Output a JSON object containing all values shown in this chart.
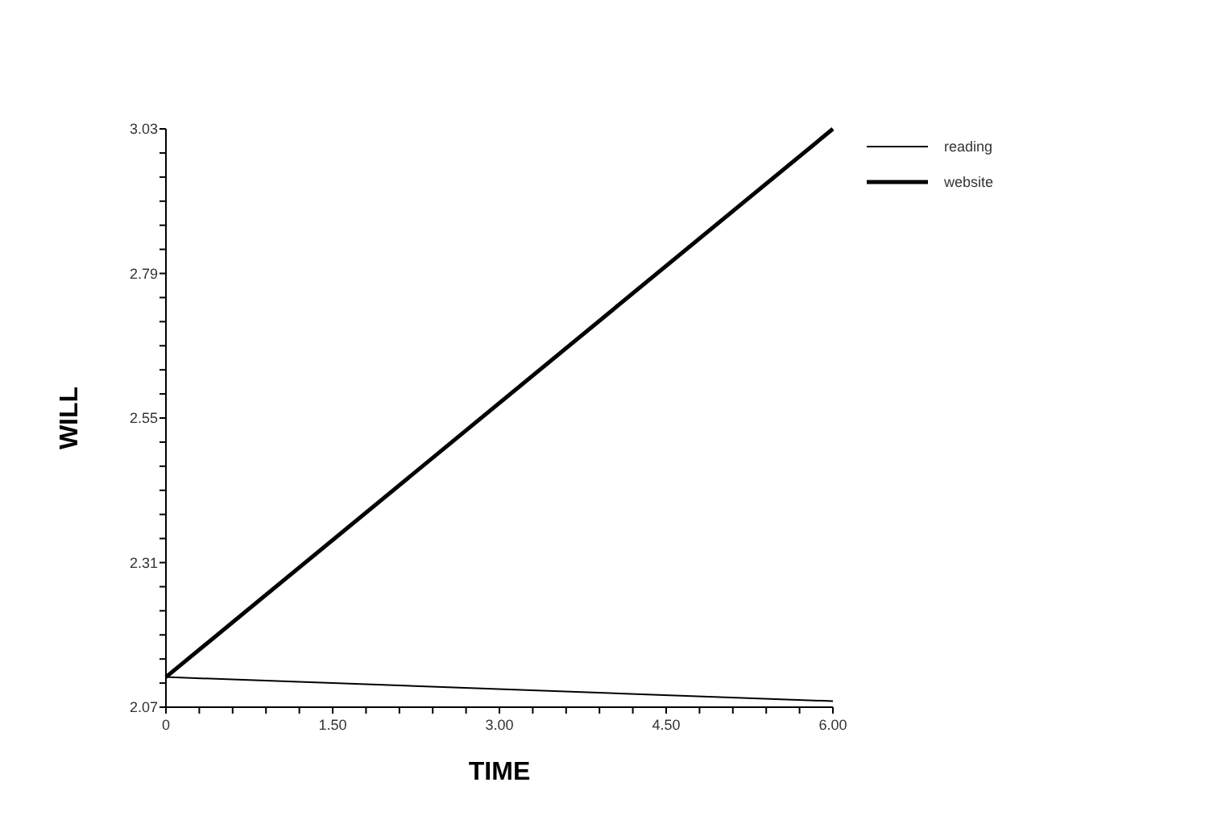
{
  "chart_data": {
    "type": "line",
    "xlabel": "TIME",
    "ylabel": "WILL",
    "x": [
      0,
      6
    ],
    "series": [
      {
        "name": "reading",
        "color": "#000000",
        "values": [
          2.12,
          2.08
        ]
      },
      {
        "name": "website",
        "color": "#000000",
        "values": [
          2.12,
          3.03
        ]
      }
    ],
    "xlim": [
      0,
      6
    ],
    "ylim": [
      2.07,
      3.03
    ],
    "xticks": [
      {
        "value": 0,
        "label": "0"
      },
      {
        "value": 0.3,
        "label": null
      },
      {
        "value": 0.6,
        "label": null
      },
      {
        "value": 0.9,
        "label": null
      },
      {
        "value": 1.2,
        "label": null
      },
      {
        "value": 1.5,
        "label": "1.50"
      },
      {
        "value": 1.8,
        "label": null
      },
      {
        "value": 2.1,
        "label": null
      },
      {
        "value": 2.4,
        "label": null
      },
      {
        "value": 2.7,
        "label": null
      },
      {
        "value": 3,
        "label": "3.00"
      },
      {
        "value": 3.3,
        "label": null
      },
      {
        "value": 3.6,
        "label": null
      },
      {
        "value": 3.9,
        "label": null
      },
      {
        "value": 4.2,
        "label": null
      },
      {
        "value": 4.5,
        "label": "4.50"
      },
      {
        "value": 4.8,
        "label": null
      },
      {
        "value": 5.1,
        "label": null
      },
      {
        "value": 5.4,
        "label": null
      },
      {
        "value": 5.7,
        "label": null
      },
      {
        "value": 6,
        "label": "6.00"
      }
    ],
    "yticks": [
      2.07,
      {
        "value": 2.11,
        "label": null
      },
      {
        "value": 2.15,
        "label": null
      },
      {
        "value": 2.19,
        "label": null
      },
      {
        "value": 2.23,
        "label": null
      },
      {
        "value": 2.27,
        "label": null
      },
      2.31,
      {
        "value": 2.35,
        "label": null
      },
      {
        "value": 2.39,
        "label": null
      },
      {
        "value": 2.43,
        "label": null
      },
      {
        "value": 2.47,
        "label": null
      },
      {
        "value": 2.51,
        "label": null
      },
      2.55,
      {
        "value": 2.59,
        "label": null
      },
      {
        "value": 2.63,
        "label": null
      },
      {
        "value": 2.67,
        "label": null
      },
      {
        "value": 2.71,
        "label": null
      },
      {
        "value": 2.75,
        "label": null
      },
      2.79,
      {
        "value": 2.83,
        "label": null
      },
      {
        "value": 2.87,
        "label": null
      },
      {
        "value": 2.91,
        "label": null
      },
      {
        "value": 2.95,
        "label": null
      },
      {
        "value": 2.99,
        "label": null
      },
      3.03
    ],
    "legend": "top right",
    "grid": false,
    "marker": "none",
    "line_style": "solid"
  }
}
